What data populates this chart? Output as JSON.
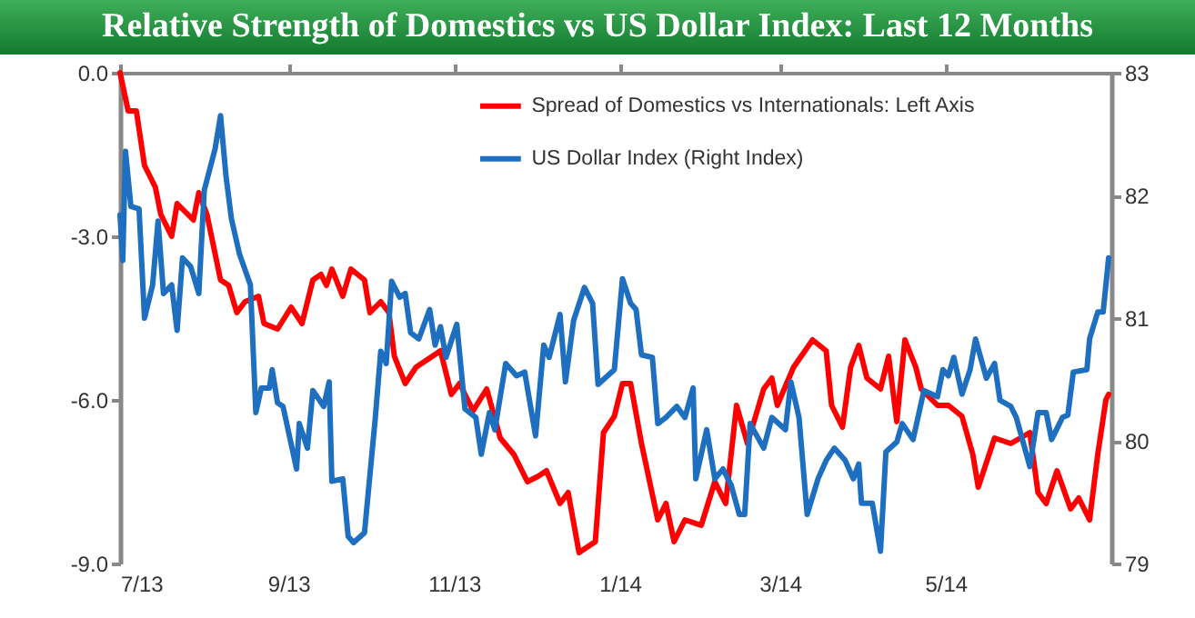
{
  "chart_data": {
    "type": "line",
    "title": "Relative Strength of Domestics vs US Dollar Index: Last 12 Months",
    "xlim": [
      "2013-07-01",
      "2014-07-01"
    ],
    "xticks": [
      {
        "value": "2013-07-01",
        "label": "7/13"
      },
      {
        "value": "2013-09-01",
        "label": "9/13"
      },
      {
        "value": "2013-11-01",
        "label": "11/13"
      },
      {
        "value": "2014-01-01",
        "label": "1/14"
      },
      {
        "value": "2014-03-01",
        "label": "3/14"
      },
      {
        "value": "2014-05-01",
        "label": "5/14"
      }
    ],
    "ylim": [
      -9,
      0
    ],
    "yticks": [
      {
        "value": 0,
        "label": "0.0"
      },
      {
        "value": -3,
        "label": "-3.0"
      },
      {
        "value": -6,
        "label": "-6.0"
      },
      {
        "value": -9,
        "label": "-9.0"
      }
    ],
    "y2lim": [
      79,
      83
    ],
    "y2ticks": [
      79,
      80,
      81,
      82,
      83
    ],
    "legend": "top",
    "line_style": "solid",
    "series": [
      {
        "name": "Spread of Domestics vs Internationals:  Left Axis",
        "color": "#ff0000",
        "x": [
          "2013-07-01",
          "2013-07-04",
          "2013-07-07",
          "2013-07-10",
          "2013-07-14",
          "2013-07-16",
          "2013-07-20",
          "2013-07-22",
          "2013-07-28",
          "2013-07-30",
          "2013-08-02",
          "2013-08-07",
          "2013-08-10",
          "2013-08-13",
          "2013-08-16",
          "2013-08-21",
          "2013-08-23",
          "2013-08-28",
          "2013-09-02",
          "2013-09-06",
          "2013-09-10",
          "2013-09-13",
          "2013-09-15",
          "2013-09-17",
          "2013-09-21",
          "2013-09-24",
          "2013-09-29",
          "2013-10-01",
          "2013-10-05",
          "2013-10-08",
          "2013-10-10",
          "2013-10-14",
          "2013-10-18",
          "2013-10-27",
          "2013-10-31",
          "2013-11-03",
          "2013-11-08",
          "2013-11-13",
          "2013-11-18",
          "2013-11-23",
          "2013-11-28",
          "2013-12-02",
          "2013-12-05",
          "2013-12-10",
          "2013-12-13",
          "2013-12-17",
          "2013-12-23",
          "2013-12-26",
          "2013-12-30",
          "2014-01-02",
          "2014-01-05",
          "2014-01-09",
          "2014-01-15",
          "2014-01-18",
          "2014-01-21",
          "2014-01-25",
          "2014-01-31",
          "2014-02-05",
          "2014-02-09",
          "2014-02-13",
          "2014-02-17",
          "2014-02-23",
          "2014-02-26",
          "2014-02-28",
          "2014-03-06",
          "2014-03-13",
          "2014-03-18",
          "2014-03-20",
          "2014-03-24",
          "2014-03-27",
          "2014-03-30",
          "2014-04-02",
          "2014-04-07",
          "2014-04-10",
          "2014-04-13",
          "2014-04-16",
          "2014-04-20",
          "2014-04-22",
          "2014-04-28",
          "2014-05-02",
          "2014-05-07",
          "2014-05-11",
          "2014-05-13",
          "2014-05-19",
          "2014-05-25",
          "2014-06-01",
          "2014-06-04",
          "2014-06-07",
          "2014-06-11",
          "2014-06-16",
          "2014-06-19",
          "2014-06-23",
          "2014-06-26",
          "2014-06-29",
          "2014-06-30"
        ],
        "values": [
          0,
          -0.7,
          -0.7,
          -1.7,
          -2.1,
          -2.6,
          -3.0,
          -2.4,
          -2.7,
          -2.2,
          -2.6,
          -3.8,
          -3.9,
          -4.4,
          -4.2,
          -4.1,
          -4.6,
          -4.7,
          -4.3,
          -4.6,
          -3.8,
          -3.7,
          -3.9,
          -3.6,
          -4.1,
          -3.6,
          -3.8,
          -4.4,
          -4.2,
          -4.4,
          -5.2,
          -5.7,
          -5.4,
          -5.1,
          -5.9,
          -5.7,
          -6.2,
          -5.8,
          -6.7,
          -7.0,
          -7.5,
          -7.4,
          -7.3,
          -7.9,
          -7.7,
          -8.8,
          -8.6,
          -6.6,
          -6.3,
          -5.7,
          -5.7,
          -6.8,
          -8.2,
          -7.9,
          -8.6,
          -8.2,
          -8.3,
          -7.5,
          -7.9,
          -6.1,
          -6.8,
          -5.8,
          -5.6,
          -6.1,
          -5.4,
          -4.9,
          -5.1,
          -6.1,
          -6.5,
          -5.4,
          -5.0,
          -5.6,
          -5.8,
          -5.2,
          -6.4,
          -4.9,
          -5.4,
          -5.8,
          -6.1,
          -6.1,
          -6.3,
          -7.0,
          -7.6,
          -6.7,
          -6.8,
          -6.6,
          -7.7,
          -7.9,
          -7.3,
          -8.0,
          -7.8,
          -8.2,
          -7.0,
          -6.0,
          -5.9
        ]
      },
      {
        "name": "US Dollar Index (Right Index)",
        "color": "#1f6fc0",
        "axis": "y2",
        "x": [
          "2013-07-01",
          "2013-07-02",
          "2013-07-03",
          "2013-07-05",
          "2013-07-08",
          "2013-07-10",
          "2013-07-13",
          "2013-07-15",
          "2013-07-17",
          "2013-07-20",
          "2013-07-22",
          "2013-07-24",
          "2013-07-27",
          "2013-07-30",
          "2013-08-01",
          "2013-08-05",
          "2013-08-07",
          "2013-08-09",
          "2013-08-11",
          "2013-08-14",
          "2013-08-18",
          "2013-08-20",
          "2013-08-22",
          "2013-08-25",
          "2013-08-26",
          "2013-08-28",
          "2013-08-30",
          "2013-09-04",
          "2013-09-05",
          "2013-09-08",
          "2013-09-10",
          "2013-09-14",
          "2013-09-16",
          "2013-09-17",
          "2013-09-21",
          "2013-09-23",
          "2013-09-25",
          "2013-09-29",
          "2013-10-03",
          "2013-10-05",
          "2013-10-07",
          "2013-10-09",
          "2013-10-12",
          "2013-10-14",
          "2013-10-16",
          "2013-10-19",
          "2013-10-23",
          "2013-10-25",
          "2013-10-27",
          "2013-10-29",
          "2013-11-02",
          "2013-11-05",
          "2013-11-09",
          "2013-11-11",
          "2013-11-14",
          "2013-11-16",
          "2013-11-20",
          "2013-11-24",
          "2013-11-27",
          "2013-12-01",
          "2013-12-04",
          "2013-12-06",
          "2013-12-10",
          "2013-12-12",
          "2013-12-15",
          "2013-12-19",
          "2013-12-22",
          "2013-12-24",
          "2013-12-30",
          "2014-01-02",
          "2014-01-05",
          "2014-01-07",
          "2014-01-09",
          "2014-01-13",
          "2014-01-15",
          "2014-01-18",
          "2014-01-22",
          "2014-01-25",
          "2014-01-28",
          "2014-01-29",
          "2014-02-02",
          "2014-02-05",
          "2014-02-08",
          "2014-02-11",
          "2014-02-14",
          "2014-02-16",
          "2014-02-18",
          "2014-02-23",
          "2014-02-26",
          "2014-03-03",
          "2014-03-05",
          "2014-03-08",
          "2014-03-11",
          "2014-03-15",
          "2014-03-18",
          "2014-03-21",
          "2014-03-25",
          "2014-03-28",
          "2014-03-30",
          "2014-03-31",
          "2014-04-04",
          "2014-04-07",
          "2014-04-09",
          "2014-04-13",
          "2014-04-15",
          "2014-04-19",
          "2014-04-23",
          "2014-04-28",
          "2014-04-30",
          "2014-05-02",
          "2014-05-04",
          "2014-05-07",
          "2014-05-10",
          "2014-05-12",
          "2014-05-16",
          "2014-05-19",
          "2014-05-21",
          "2014-05-25",
          "2014-05-27",
          "2014-06-01",
          "2014-06-04",
          "2014-06-07",
          "2014-06-09",
          "2014-06-13",
          "2014-06-15",
          "2014-06-17",
          "2014-06-22",
          "2014-06-23",
          "2014-06-26",
          "2014-06-28",
          "2014-06-30"
        ],
        "values": [
          81.84,
          81.47,
          82.36,
          81.91,
          81.89,
          81.0,
          81.27,
          81.79,
          81.2,
          81.27,
          80.9,
          81.49,
          81.42,
          81.2,
          82.04,
          82.38,
          82.65,
          82.16,
          81.81,
          81.52,
          81.27,
          80.23,
          80.43,
          80.43,
          80.58,
          80.31,
          80.28,
          79.77,
          80.14,
          79.94,
          80.41,
          80.28,
          80.48,
          79.67,
          79.69,
          79.22,
          79.17,
          79.25,
          80.19,
          80.73,
          80.63,
          81.3,
          81.17,
          81.2,
          80.88,
          80.83,
          81.07,
          80.78,
          80.93,
          80.68,
          80.95,
          80.26,
          80.19,
          79.89,
          80.23,
          80.09,
          80.63,
          80.53,
          80.56,
          80.04,
          80.78,
          80.68,
          81.03,
          80.48,
          80.98,
          81.25,
          81.12,
          80.46,
          80.58,
          81.32,
          81.12,
          81.07,
          80.7,
          80.68,
          80.14,
          80.19,
          80.28,
          80.19,
          80.43,
          79.69,
          80.09,
          79.69,
          79.77,
          79.64,
          79.4,
          79.4,
          80.14,
          79.94,
          80.19,
          80.09,
          80.48,
          80.19,
          79.4,
          79.69,
          79.84,
          79.94,
          79.84,
          79.69,
          79.81,
          79.49,
          79.49,
          79.1,
          79.91,
          79.99,
          80.14,
          80.01,
          80.41,
          80.36,
          80.58,
          80.53,
          80.68,
          80.38,
          80.58,
          80.83,
          80.51,
          80.63,
          80.33,
          80.28,
          80.19,
          79.79,
          80.23,
          80.23,
          80.01,
          80.19,
          80.21,
          80.56,
          80.58,
          80.83,
          81.05,
          81.05,
          81.49
        ]
      }
    ]
  }
}
